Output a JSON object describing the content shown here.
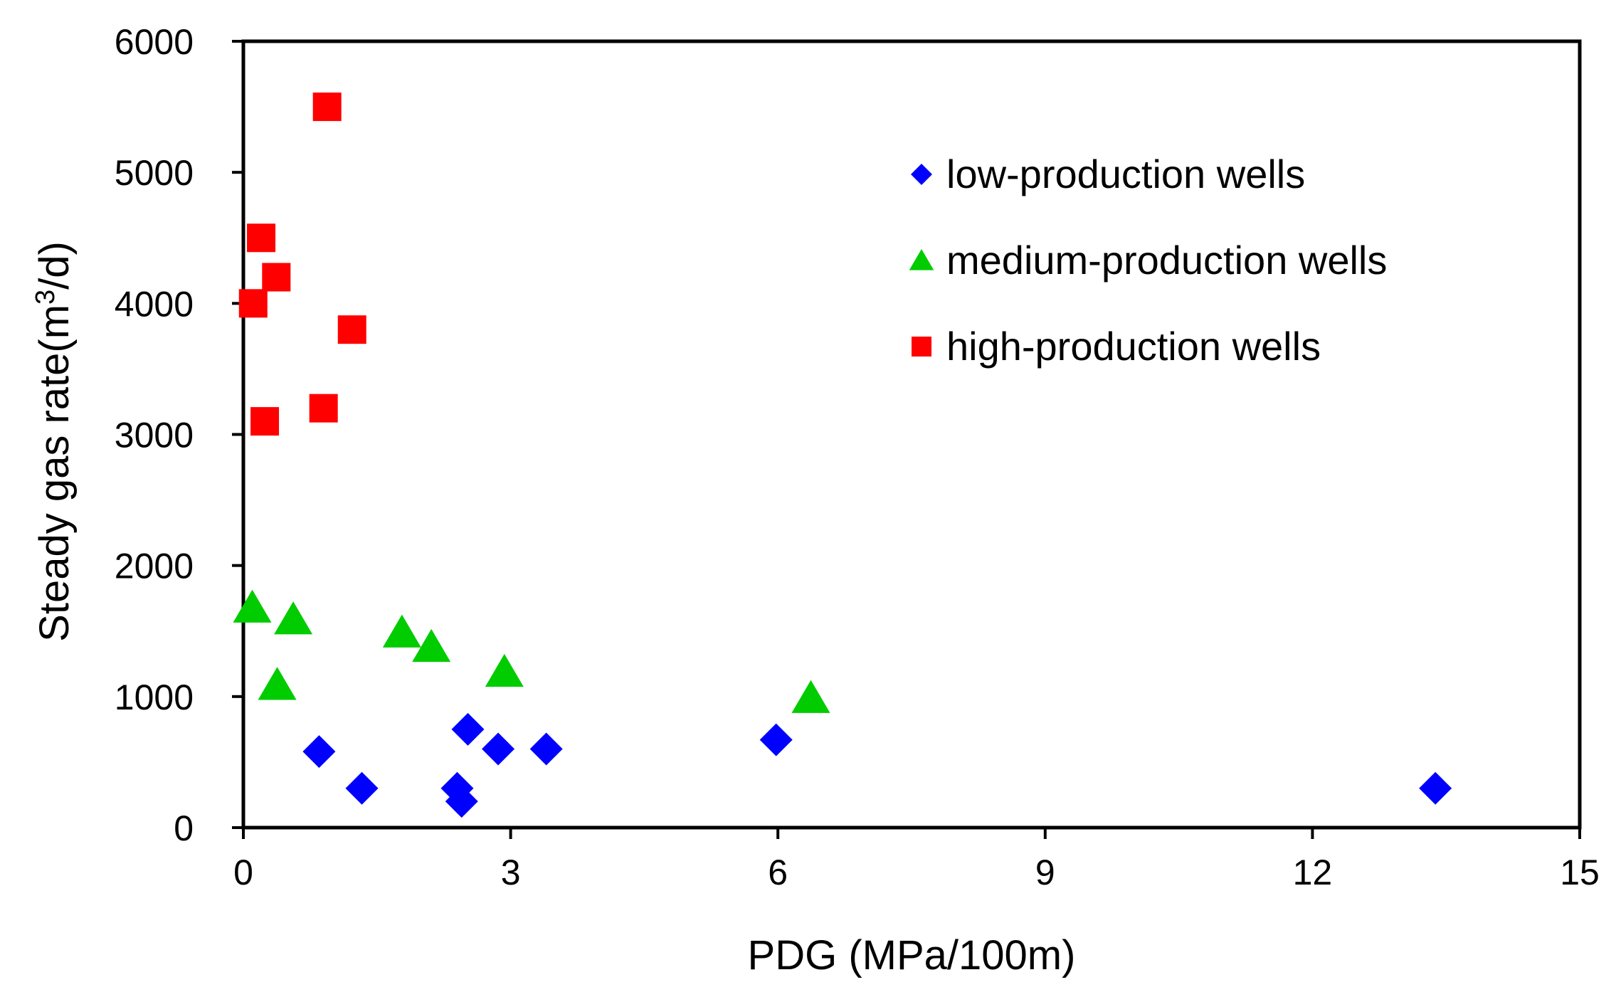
{
  "chart_data": {
    "type": "scatter",
    "title": "",
    "xlabel": "PDG (MPa/100m)",
    "ylabel": {
      "prefix": "Steady gas rate(m",
      "superscript": "3",
      "suffix": "/d)"
    },
    "xlim": [
      0,
      15
    ],
    "ylim": [
      0,
      6000
    ],
    "x_ticks": [
      {
        "value": 0,
        "label": "0"
      },
      {
        "value": 3,
        "label": "3"
      },
      {
        "value": 6,
        "label": "6"
      },
      {
        "value": 9,
        "label": "9"
      },
      {
        "value": 12,
        "label": "12"
      },
      {
        "value": 15,
        "label": "15"
      }
    ],
    "y_ticks": [
      {
        "value": 0,
        "label": "0"
      },
      {
        "value": 1000,
        "label": "1000"
      },
      {
        "value": 2000,
        "label": "2000"
      },
      {
        "value": 3000,
        "label": "3000"
      },
      {
        "value": 4000,
        "label": "4000"
      },
      {
        "value": 5000,
        "label": "5000"
      },
      {
        "value": 6000,
        "label": "6000"
      }
    ],
    "grid": false,
    "legend_position": "top-right",
    "series": [
      {
        "name": "low-production wells",
        "marker": "diamond",
        "color": "#0000FF",
        "points": [
          {
            "x": 0.85,
            "y": 580
          },
          {
            "x": 1.33,
            "y": 300
          },
          {
            "x": 2.4,
            "y": 300
          },
          {
            "x": 2.45,
            "y": 200
          },
          {
            "x": 2.52,
            "y": 750
          },
          {
            "x": 2.86,
            "y": 600
          },
          {
            "x": 3.4,
            "y": 600
          },
          {
            "x": 5.98,
            "y": 670
          },
          {
            "x": 13.38,
            "y": 300
          }
        ]
      },
      {
        "name": "medium-production wells",
        "marker": "triangle",
        "color": "#00CC00",
        "points": [
          {
            "x": 0.1,
            "y": 1680
          },
          {
            "x": 0.38,
            "y": 1090
          },
          {
            "x": 0.56,
            "y": 1590
          },
          {
            "x": 1.78,
            "y": 1490
          },
          {
            "x": 2.11,
            "y": 1380
          },
          {
            "x": 2.93,
            "y": 1190
          },
          {
            "x": 6.37,
            "y": 990
          }
        ]
      },
      {
        "name": "high-production wells",
        "marker": "square",
        "color": "#FF0000",
        "points": [
          {
            "x": 0.11,
            "y": 4000
          },
          {
            "x": 0.2,
            "y": 4500
          },
          {
            "x": 0.24,
            "y": 3100
          },
          {
            "x": 0.37,
            "y": 4200
          },
          {
            "x": 0.9,
            "y": 3200
          },
          {
            "x": 0.94,
            "y": 5500
          },
          {
            "x": 1.22,
            "y": 3800
          }
        ]
      }
    ]
  }
}
